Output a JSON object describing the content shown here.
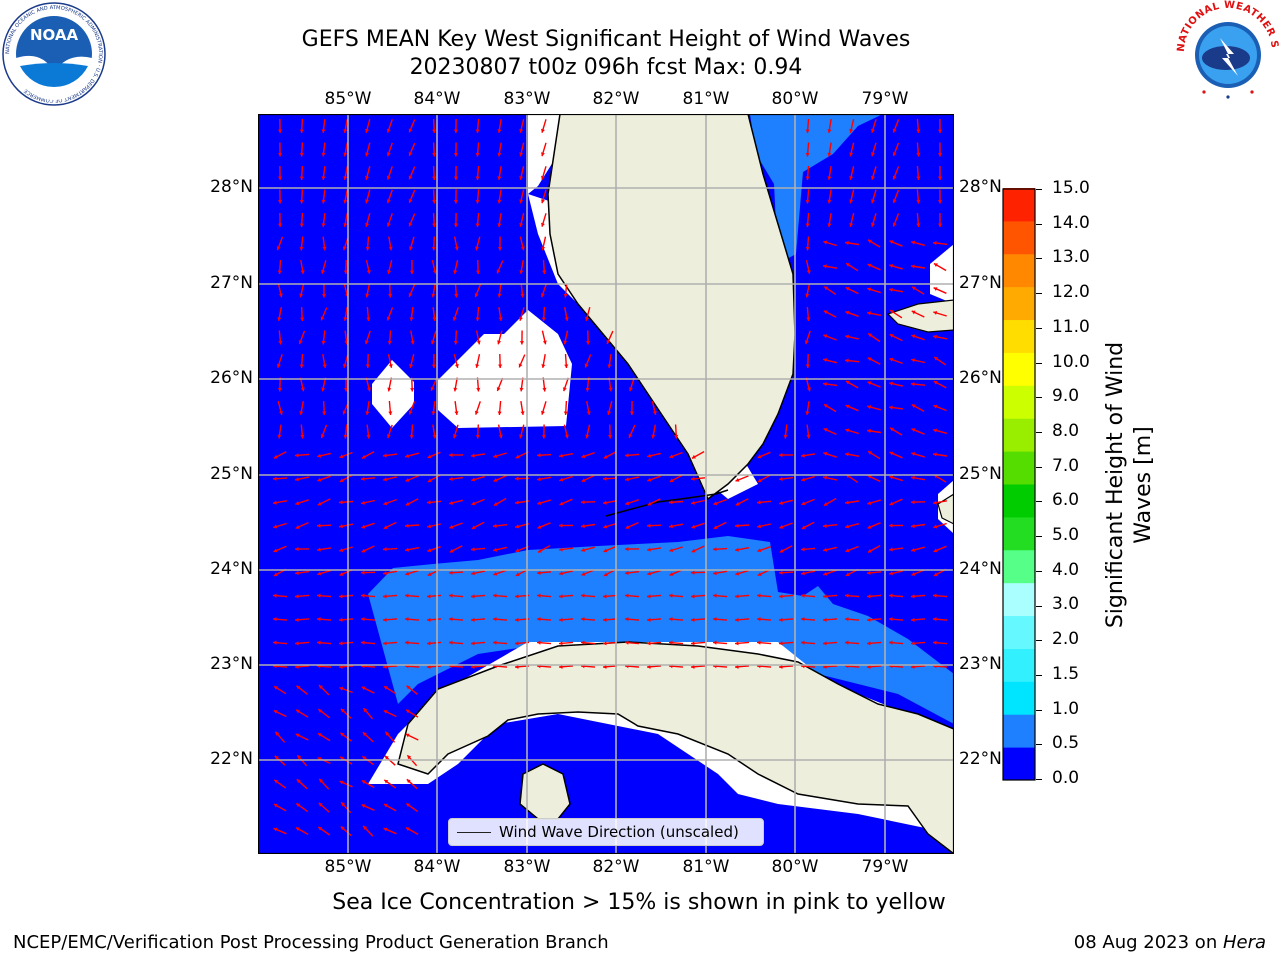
{
  "title": {
    "line1": "GEFS MEAN Key West Significant Height of Wind Waves",
    "line2": "20230807 t00z 096h fcst   Max: 0.94"
  },
  "map": {
    "lon_labels": [
      "85°W",
      "84°W",
      "83°W",
      "82°W",
      "81°W",
      "80°W",
      "79°W"
    ],
    "lat_labels": [
      "28°N",
      "27°N",
      "26°N",
      "25°N",
      "24°N",
      "23°N",
      "22°N"
    ],
    "lon_range": [
      -86.0,
      -78.3
    ],
    "lat_range": [
      21.1,
      28.75
    ],
    "ocean_color": "#0000ff",
    "band_color": "#1e7fff",
    "land_color": "#eeeedd",
    "arrow_color": "#ff0000",
    "grid_color": "#b0b0b0"
  },
  "legend": {
    "label": "Wind Wave Direction (unscaled)"
  },
  "colorbar": {
    "label": "Significant Height of Wind Waves [m]",
    "label_lines": [
      "Significant Height of Wind",
      "Waves [m]"
    ],
    "ticks": [
      "15.0",
      "14.0",
      "13.0",
      "12.0",
      "11.0",
      "10.0",
      "9.0",
      "8.0",
      "7.0",
      "6.0",
      "5.0",
      "4.0",
      "3.0",
      "2.0",
      "1.5",
      "1.0",
      "0.5",
      "0.0"
    ],
    "colors_bottom_to_top": [
      "#0000ff",
      "#1e7fff",
      "#00e5ff",
      "#33f0ff",
      "#66f8ff",
      "#aaffff",
      "#55ff88",
      "#22dd22",
      "#00cc00",
      "#55dd00",
      "#99ee00",
      "#ccff00",
      "#ffff00",
      "#ffdd00",
      "#ffaa00",
      "#ff8800",
      "#ff5500",
      "#ff2200"
    ]
  },
  "note": "Sea Ice Concentration > 15% is shown in pink to yellow",
  "footer": {
    "left": "NCEP/EMC/Verification Post Processing Product Generation Branch",
    "right_date": "08 Aug 2023 on ",
    "right_machine": "Hera"
  },
  "logos": {
    "noaa_text": "NOAA",
    "noaa_ring": "NATIONAL OCEANIC AND ATMOSPHERIC ADMINISTRATION · U.S. DEPARTMENT OF COMMERCE",
    "nws_ring": "NATIONAL WEATHER SERVICE"
  }
}
